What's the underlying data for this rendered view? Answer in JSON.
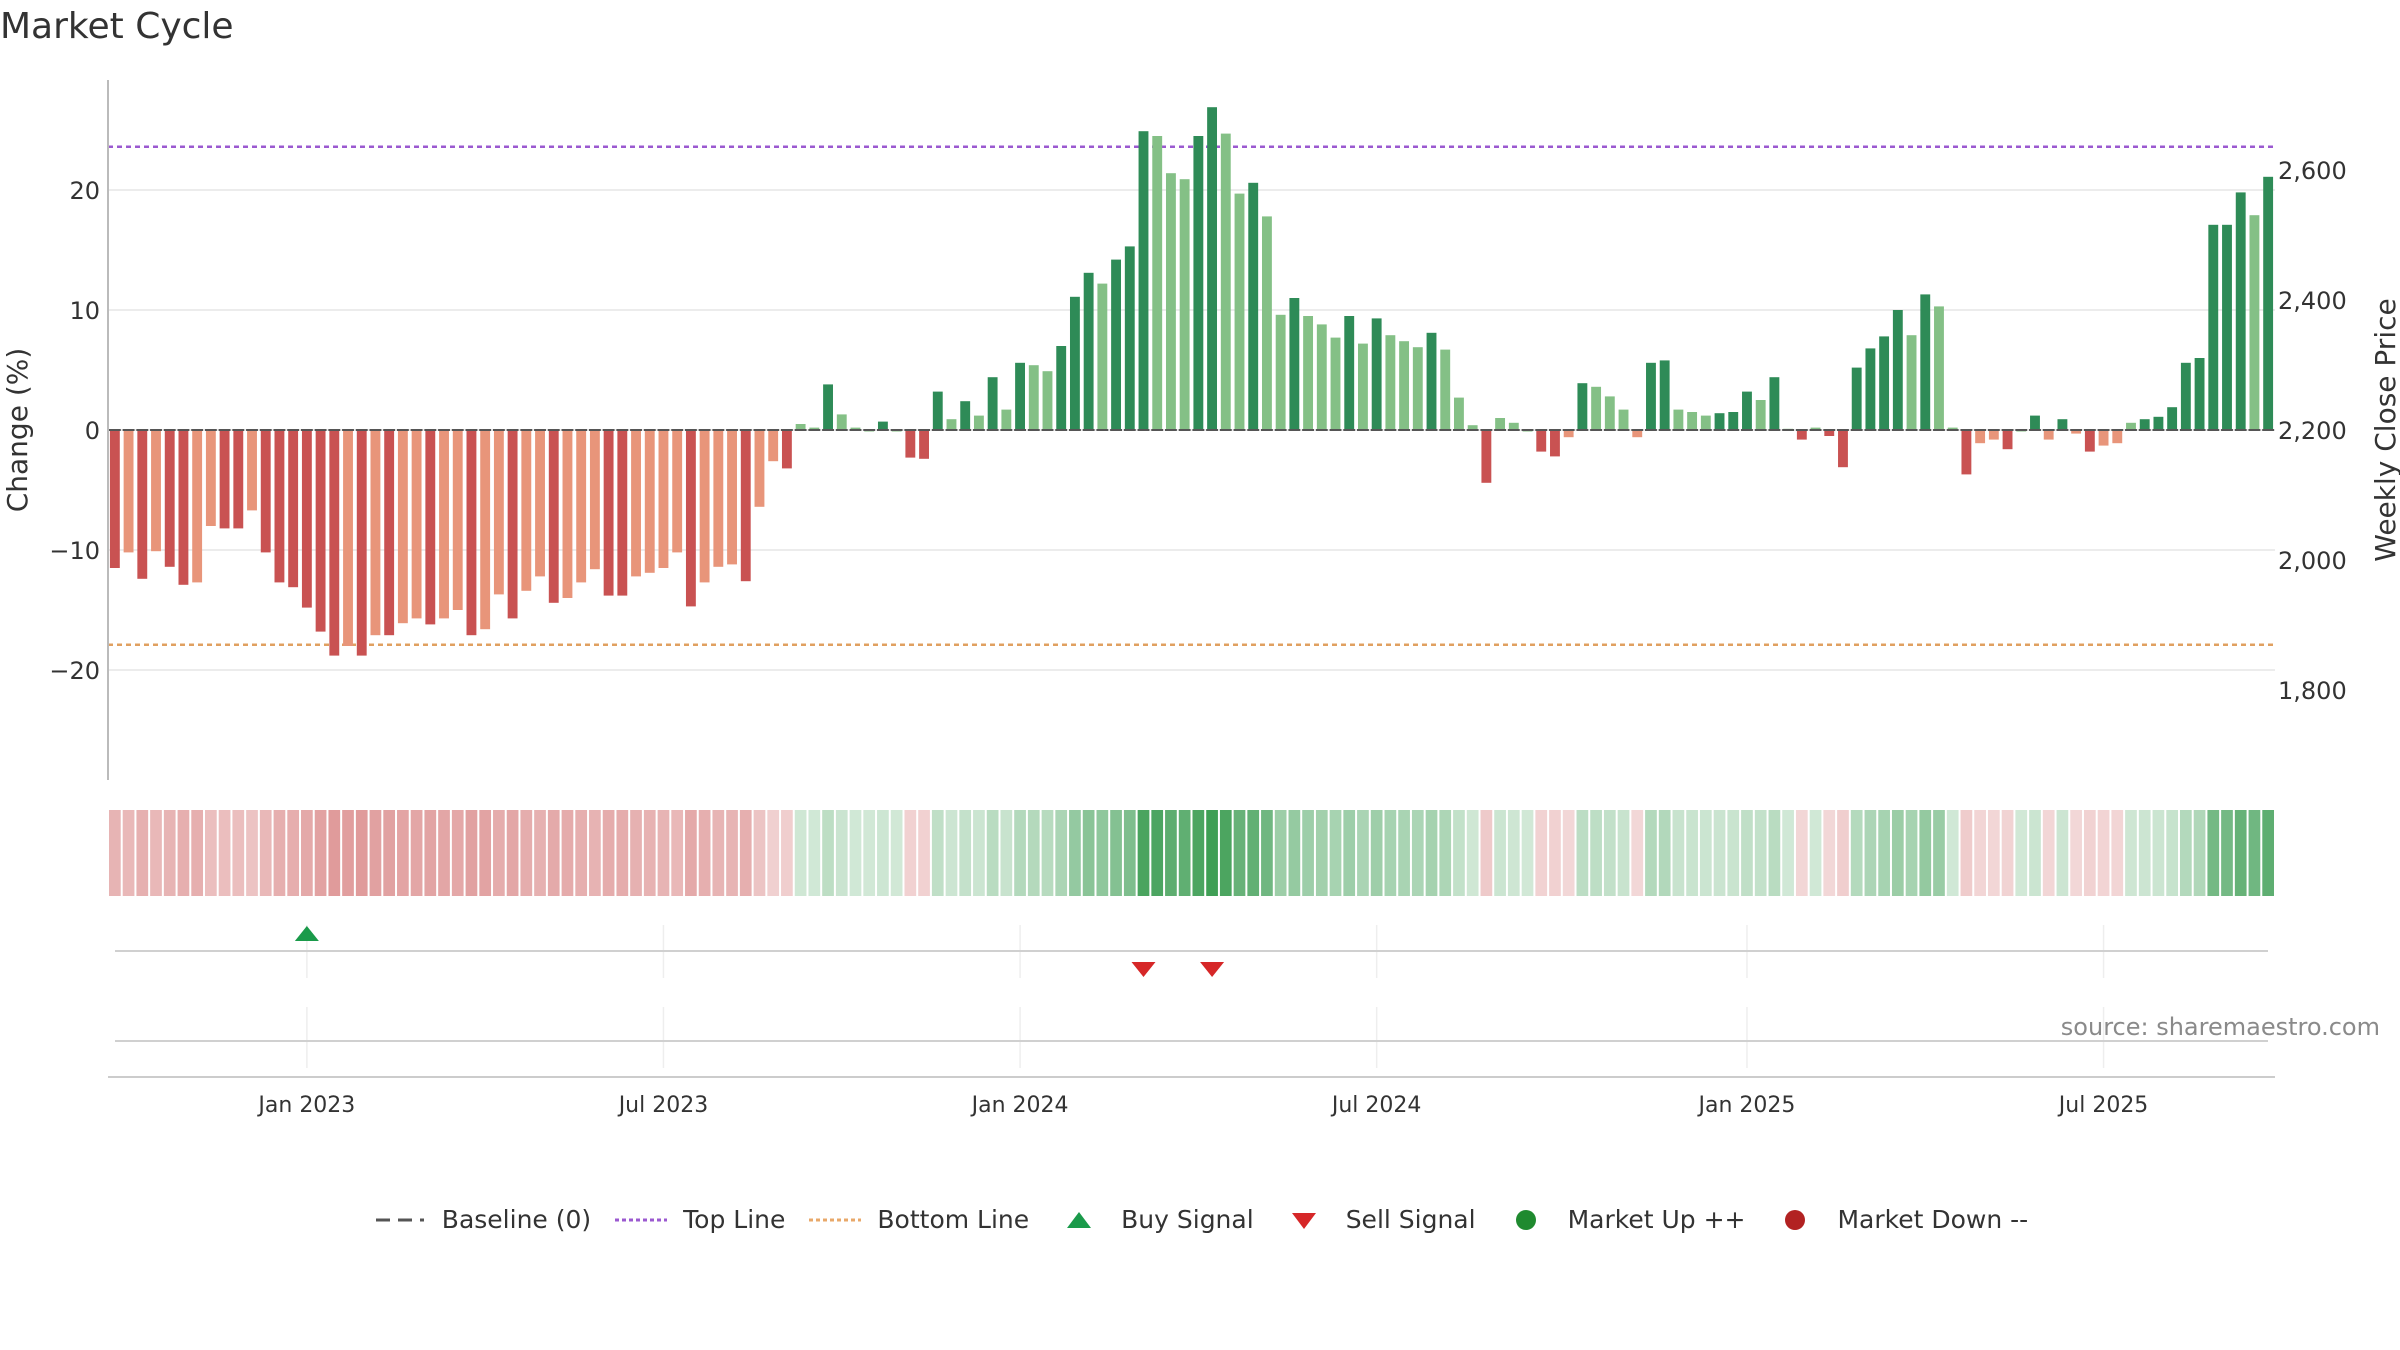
{
  "title": "Market Cycle",
  "source": "source: sharemaestro.com",
  "legend": [
    {
      "label": "Baseline (0)",
      "icon": "dash-line-icon",
      "color": "#555555"
    },
    {
      "label": "Top Line",
      "icon": "dotted-line-icon",
      "color": "#9b59d0"
    },
    {
      "label": "Bottom Line",
      "icon": "dotted-line-icon",
      "color": "#e8a86a"
    },
    {
      "label": "Buy Signal",
      "icon": "triangle-up-icon",
      "color": "#1a9a4a"
    },
    {
      "label": "Sell Signal",
      "icon": "triangle-down-icon",
      "color": "#d62728"
    },
    {
      "label": "Market Up ++",
      "icon": "circle-icon",
      "color": "#1f8a2f"
    },
    {
      "label": "Market Down --",
      "icon": "circle-icon",
      "color": "#b22222"
    }
  ],
  "chart_data": {
    "type": "bar",
    "ylabel": "Change (%)",
    "y2label": "Weekly Close Price",
    "ylim": [
      -29,
      29
    ],
    "yticks": [
      -20,
      -10,
      0,
      10,
      20
    ],
    "ytick_labels": [
      "−20",
      "−10",
      "0",
      "10",
      "20"
    ],
    "y2ticks": [
      1800,
      2000,
      2200,
      2400,
      2600
    ],
    "y2tick_labels": [
      "1,800",
      "2,000",
      "2,200",
      "2,400",
      "2,600"
    ],
    "top_line": 23.6,
    "bottom_line": -17.9,
    "baseline": 0,
    "x_start": "2022-09-26",
    "x_step_days": 7,
    "xticks": [
      {
        "label": "Jan 2023",
        "date": "2023-01-02"
      },
      {
        "label": "Jul 2023",
        "date": "2023-07-03"
      },
      {
        "label": "Jan 2024",
        "date": "2024-01-01"
      },
      {
        "label": "Jul 2024",
        "date": "2024-07-01"
      },
      {
        "label": "Jan 2025",
        "date": "2025-01-06"
      },
      {
        "label": "Jul 2025",
        "date": "2025-07-07"
      }
    ],
    "values": [
      -11.5,
      -10.2,
      -12.4,
      -10.1,
      -11.4,
      -12.9,
      -12.7,
      -8.0,
      -8.2,
      -8.2,
      -6.7,
      -10.2,
      -12.7,
      -13.1,
      -14.8,
      -16.8,
      -18.8,
      -18.0,
      -18.8,
      -17.1,
      -17.1,
      -16.1,
      -15.7,
      -16.2,
      -15.7,
      -15.0,
      -17.1,
      -16.6,
      -13.7,
      -15.7,
      -13.4,
      -12.2,
      -14.4,
      -14.0,
      -12.7,
      -11.6,
      -13.8,
      -13.8,
      -12.2,
      -11.9,
      -11.5,
      -10.2,
      -14.7,
      -12.7,
      -11.4,
      -11.2,
      -12.6,
      -6.4,
      -2.6,
      -3.2,
      0.5,
      0.2,
      3.8,
      1.3,
      0.2,
      0.0,
      0.7,
      0.0,
      -2.3,
      -2.4,
      3.2,
      0.9,
      2.4,
      1.2,
      4.4,
      1.7,
      5.6,
      5.4,
      4.9,
      7.0,
      11.1,
      13.1,
      12.2,
      14.2,
      15.3,
      24.9,
      24.5,
      21.4,
      20.9,
      24.5,
      26.9,
      24.7,
      19.7,
      20.6,
      17.8,
      9.6,
      11.0,
      9.5,
      8.8,
      7.7,
      9.5,
      7.2,
      9.3,
      7.9,
      7.4,
      6.9,
      8.1,
      6.7,
      2.7,
      0.4,
      -4.4,
      1.0,
      0.6,
      0.0,
      -1.8,
      -2.2,
      -0.6,
      3.9,
      3.6,
      2.8,
      1.7,
      -0.6,
      5.6,
      5.8,
      1.7,
      1.5,
      1.2,
      1.4,
      1.5,
      3.2,
      2.5,
      4.4,
      0.1,
      -0.8,
      0.2,
      -0.5,
      -3.1,
      5.2,
      6.8,
      7.8,
      10.0,
      7.9,
      11.3,
      10.3,
      0.2,
      -3.7,
      -1.1,
      -0.8,
      -1.6,
      0.0,
      1.2,
      -0.8,
      0.9,
      -0.3,
      -1.8,
      -1.3,
      -1.1,
      0.6,
      0.9,
      1.1,
      1.9,
      5.6,
      6.0,
      17.1,
      17.1,
      19.8,
      17.9,
      21.1
    ],
    "buy_signals": [
      "2023-01-02"
    ],
    "sell_signals": [
      "2024-03-04",
      "2024-04-08"
    ]
  }
}
